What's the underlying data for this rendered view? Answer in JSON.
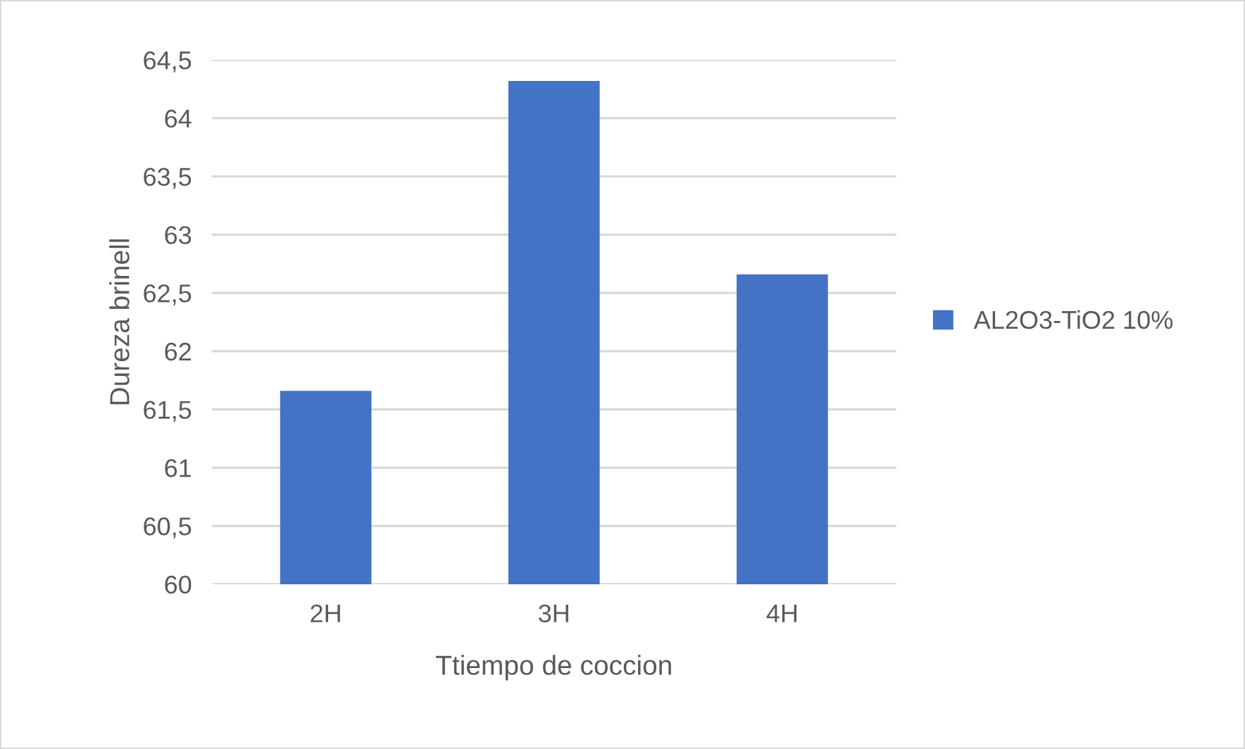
{
  "chart_data": {
    "type": "bar",
    "xlabel": "Ttiempo de coccion",
    "ylabel": "Dureza brinell",
    "categories": [
      "2H",
      "3H",
      "4H"
    ],
    "series": [
      {
        "name": "AL2O3-TiO2 10%",
        "color": "#4472c4",
        "values": [
          61.66,
          64.32,
          62.66
        ]
      }
    ],
    "ylim": [
      60,
      64.5
    ],
    "yticks": [
      60,
      {
        "value": 60.5,
        "label": "60,5"
      },
      61,
      {
        "value": 61.5,
        "label": "61,5"
      },
      62,
      {
        "value": 62.5,
        "label": "62,5"
      },
      63,
      {
        "value": 63.5,
        "label": "63,5"
      },
      64,
      {
        "value": 64.5,
        "label": "64,5"
      }
    ],
    "grid": "y",
    "legend": "right"
  }
}
